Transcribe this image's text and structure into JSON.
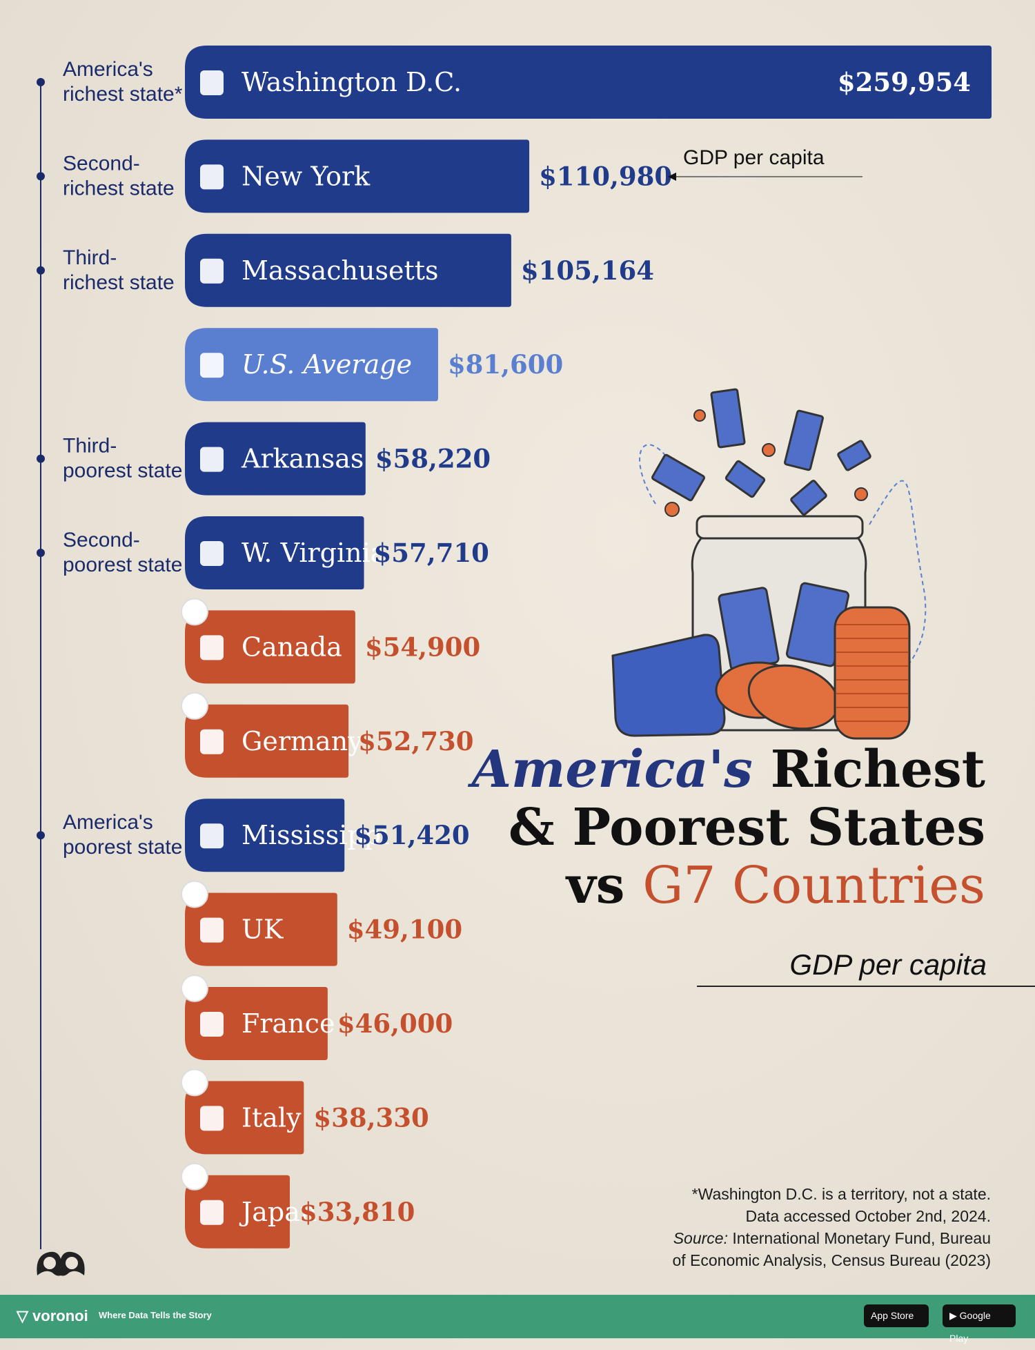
{
  "chart_data": {
    "type": "bar",
    "orientation": "horizontal",
    "title": "America's Richest & Poorest States vs G7 Countries",
    "title_parts": {
      "italic": "America's",
      "rest1": "Richest",
      "line2": "& Poorest States",
      "line3_prefix": "vs",
      "line3_highlight": "G7 Countries"
    },
    "subtitle": "GDP per capita",
    "callout": "GDP per capita",
    "xlim": [
      0,
      259954
    ],
    "grid": false,
    "legend": "none",
    "bars": [
      {
        "name": "Washington D.C.",
        "value": 259954,
        "value_label": "$259,954",
        "group": "state",
        "note": "America's richest state*",
        "value_inside": true
      },
      {
        "name": "New York",
        "value": 110980,
        "value_label": "$110,980",
        "group": "state",
        "note": "Second-richest state"
      },
      {
        "name": "Massachusetts",
        "value": 105164,
        "value_label": "$105,164",
        "group": "state",
        "note": "Third-richest state"
      },
      {
        "name": "U.S. Average",
        "value": 81600,
        "value_label": "$81,600",
        "group": "average",
        "note": ""
      },
      {
        "name": "Arkansas",
        "value": 58220,
        "value_label": "$58,220",
        "group": "state",
        "note": "Third-poorest state"
      },
      {
        "name": "W. Virginia",
        "value": 57710,
        "value_label": "$57,710",
        "group": "state",
        "note": "Second-poorest state"
      },
      {
        "name": "Canada",
        "value": 54900,
        "value_label": "$54,900",
        "group": "g7",
        "note": ""
      },
      {
        "name": "Germany",
        "value": 52730,
        "value_label": "$52,730",
        "group": "g7",
        "note": ""
      },
      {
        "name": "Mississippi",
        "value": 51420,
        "value_label": "$51,420",
        "group": "state",
        "note": "America's poorest state"
      },
      {
        "name": "UK",
        "value": 49100,
        "value_label": "$49,100",
        "group": "g7",
        "note": ""
      },
      {
        "name": "France",
        "value": 46000,
        "value_label": "$46,000",
        "group": "g7",
        "note": ""
      },
      {
        "name": "Italy",
        "value": 38330,
        "value_label": "$38,330",
        "group": "g7",
        "note": ""
      },
      {
        "name": "Japan",
        "value": 33810,
        "value_label": "$33,810",
        "group": "g7",
        "note": ""
      }
    ],
    "colors": {
      "state": "#1f3b8a",
      "average": "#5a7fd0",
      "g7": "#c5502e"
    }
  },
  "footnote": {
    "line1": "*Washington D.C. is a territory, not a state.",
    "line2": "Data accessed October 2nd, 2024.",
    "source_label": "Source:",
    "line3": " International Monetary Fund, Bureau",
    "line4": "of Economic Analysis, Census Bureau (2023)"
  },
  "footer": {
    "brand": "voronoi",
    "tagline": "Where Data Tells the Story",
    "app_store": "App Store",
    "google_play": "Google Play"
  }
}
